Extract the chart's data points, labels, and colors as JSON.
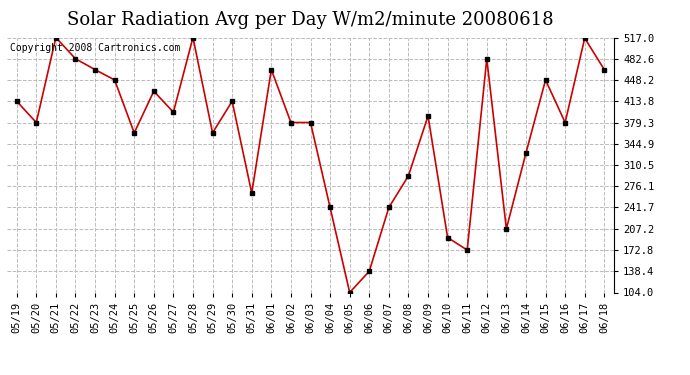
{
  "title": "Solar Radiation Avg per Day W/m2/minute 20080618",
  "copyright_text": "Copyright 2008 Cartronics.com",
  "labels": [
    "05/19",
    "05/20",
    "05/21",
    "05/22",
    "05/23",
    "05/24",
    "05/25",
    "05/26",
    "05/27",
    "05/28",
    "05/29",
    "05/30",
    "05/31",
    "06/01",
    "06/02",
    "06/03",
    "06/04",
    "06/05",
    "06/06",
    "06/07",
    "06/08",
    "06/09",
    "06/10",
    "06/11",
    "06/12",
    "06/13",
    "06/14",
    "06/15",
    "06/16",
    "06/17",
    "06/18"
  ],
  "values": [
    413.8,
    379.3,
    517.0,
    482.6,
    465.0,
    448.2,
    362.5,
    430.0,
    396.0,
    517.0,
    362.5,
    413.8,
    265.0,
    465.0,
    379.3,
    379.3,
    241.7,
    104.0,
    138.4,
    241.7,
    293.0,
    390.0,
    193.0,
    172.8,
    482.6,
    207.2,
    330.0,
    448.2,
    379.3,
    516.0,
    465.0
  ],
  "line_color": "#cc0000",
  "marker_color": "#000000",
  "bg_color": "#ffffff",
  "plot_bg_color": "#ffffff",
  "grid_color": "#bbbbbb",
  "ylim": [
    104.0,
    517.0
  ],
  "yticks": [
    104.0,
    138.4,
    172.8,
    207.2,
    241.7,
    276.1,
    310.5,
    344.9,
    379.3,
    413.8,
    448.2,
    482.6,
    517.0
  ],
  "title_fontsize": 13,
  "tick_fontsize": 7.5,
  "copyright_fontsize": 7
}
